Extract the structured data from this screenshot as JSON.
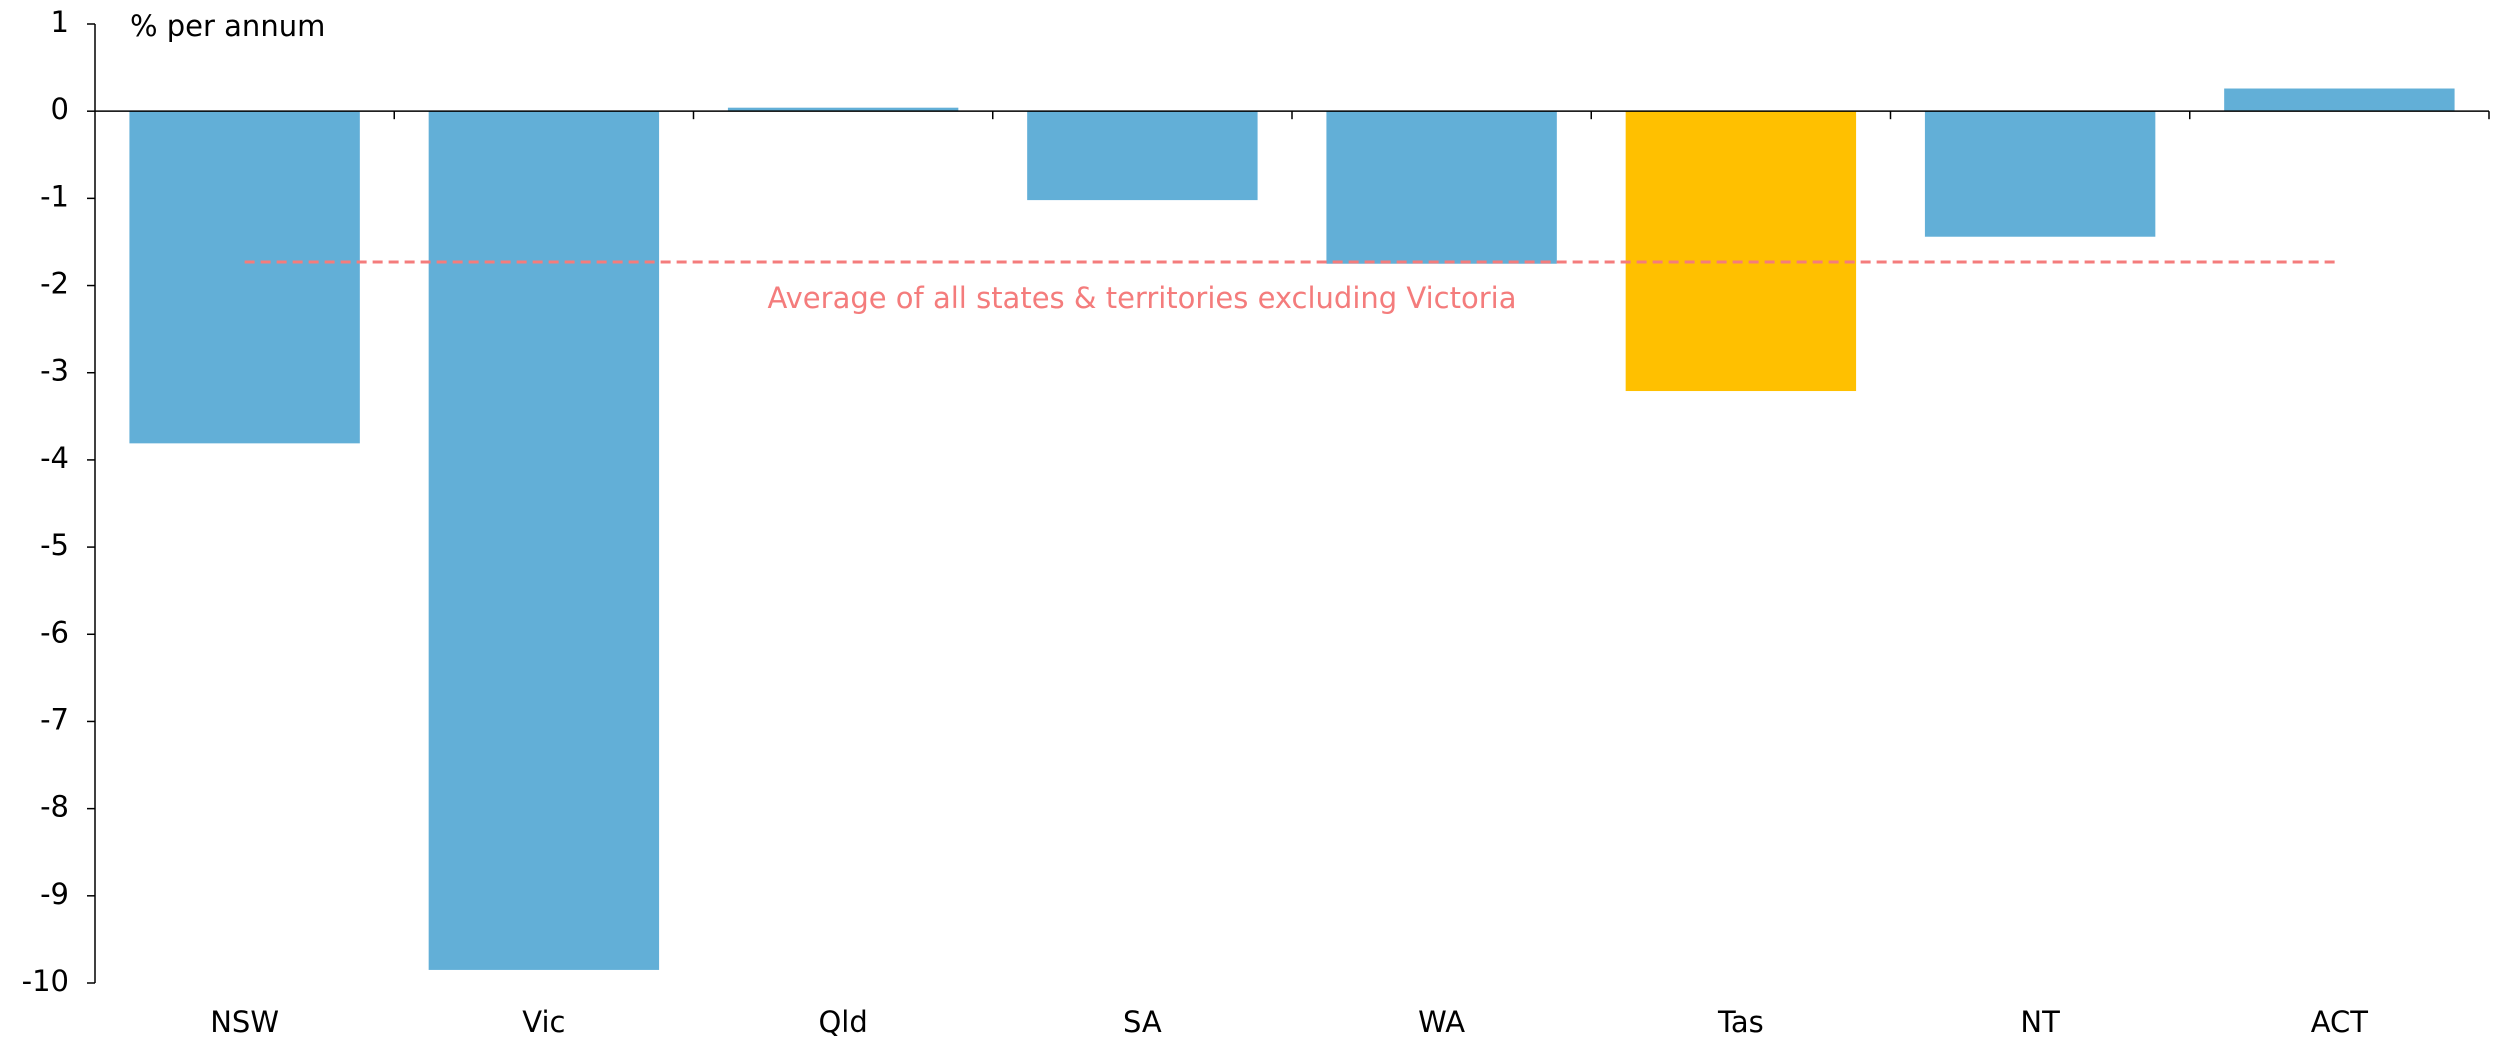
{
  "chart_data": {
    "type": "bar",
    "y_axis_label": "% per annum",
    "categories": [
      "NSW",
      "Vic",
      "Qld",
      "SA",
      "WA",
      "Tas",
      "NT",
      "ACT"
    ],
    "values": [
      -3.81,
      -9.85,
      0.04,
      -1.02,
      -1.75,
      -3.21,
      -1.44,
      0.26
    ],
    "colors": [
      "#62afd7",
      "#62afd7",
      "#62afd7",
      "#62afd7",
      "#62afd7",
      "#ffc000",
      "#62afd7",
      "#62afd7"
    ],
    "ylim": [
      -10,
      1
    ],
    "yticks": [
      1,
      0,
      -1,
      -2,
      -3,
      -4,
      -5,
      -6,
      -7,
      -8,
      -9,
      -10
    ],
    "average": {
      "value": -1.73,
      "label": "Average of all states & territories excluding Victoria",
      "color": "#f47c7c"
    }
  }
}
